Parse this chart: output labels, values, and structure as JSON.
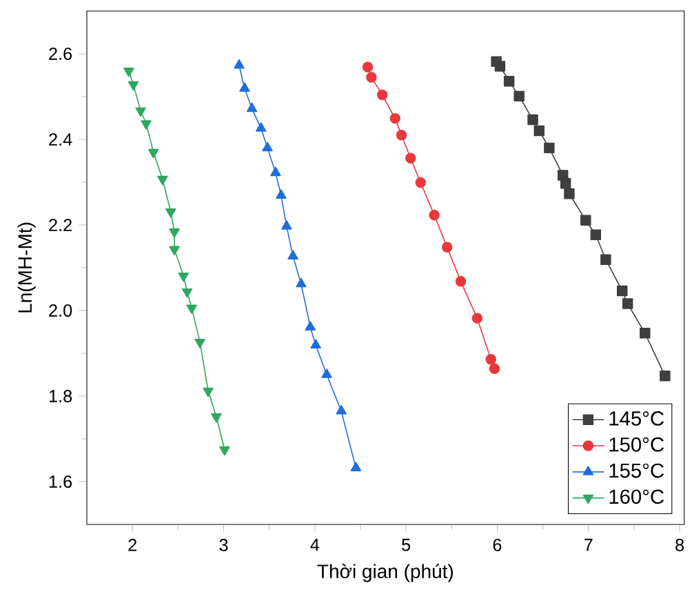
{
  "chart_data": {
    "type": "line",
    "xlabel": "Thời gian (phút)",
    "ylabel": "Ln(MH-Mt)",
    "xlim": [
      1.5,
      8.05
    ],
    "ylim": [
      1.5,
      2.7
    ],
    "xticks": [
      2,
      3,
      4,
      5,
      6,
      7,
      8
    ],
    "yticks": [
      1.6,
      1.8,
      {
        "value": 2.0,
        "label": "2.0"
      },
      2.2,
      2.4,
      2.6
    ],
    "grid": false,
    "legend": "bottom right",
    "series": [
      {
        "name": "145°C",
        "color": "#3f3f3f",
        "marker": "square",
        "x": [
          5.99,
          6.03,
          6.13,
          6.24,
          6.39,
          6.46,
          6.57,
          6.72,
          6.75,
          6.79,
          6.97,
          7.08,
          7.19,
          7.37,
          7.43,
          7.62,
          7.84
        ],
        "values": [
          2.582,
          2.571,
          2.536,
          2.501,
          2.446,
          2.42,
          2.38,
          2.316,
          2.297,
          2.273,
          2.211,
          2.177,
          2.119,
          2.046,
          2.016,
          1.947,
          1.847
        ]
      },
      {
        "name": "150°C",
        "color": "#e8383d",
        "marker": "circle",
        "x": [
          4.58,
          4.62,
          4.74,
          4.88,
          4.95,
          5.05,
          5.16,
          5.31,
          5.45,
          5.6,
          5.78,
          5.93,
          5.97
        ],
        "values": [
          2.569,
          2.545,
          2.504,
          2.449,
          2.41,
          2.356,
          2.299,
          2.223,
          2.148,
          2.068,
          1.982,
          1.886,
          1.864
        ]
      },
      {
        "name": "155°C",
        "color": "#1f6fd9",
        "marker": "triangle",
        "x": [
          3.17,
          3.23,
          3.31,
          3.41,
          3.48,
          3.57,
          3.63,
          3.69,
          3.76,
          3.85,
          3.95,
          4.01,
          4.13,
          4.29,
          4.45
        ],
        "values": [
          2.573,
          2.519,
          2.472,
          2.426,
          2.38,
          2.322,
          2.269,
          2.197,
          2.127,
          2.062,
          1.961,
          1.919,
          1.85,
          1.765,
          1.632
        ]
      },
      {
        "name": "160°C",
        "color": "#2fa760",
        "marker": "triangle-down",
        "x": [
          1.96,
          2.01,
          2.09,
          2.15,
          2.23,
          2.33,
          2.42,
          2.46,
          2.46,
          2.56,
          2.6,
          2.65,
          2.74,
          2.83,
          2.92,
          3.01
        ],
        "values": [
          2.56,
          2.528,
          2.467,
          2.437,
          2.37,
          2.307,
          2.231,
          2.184,
          2.143,
          2.081,
          2.044,
          2.006,
          1.926,
          1.812,
          1.752,
          1.675
        ]
      }
    ]
  }
}
